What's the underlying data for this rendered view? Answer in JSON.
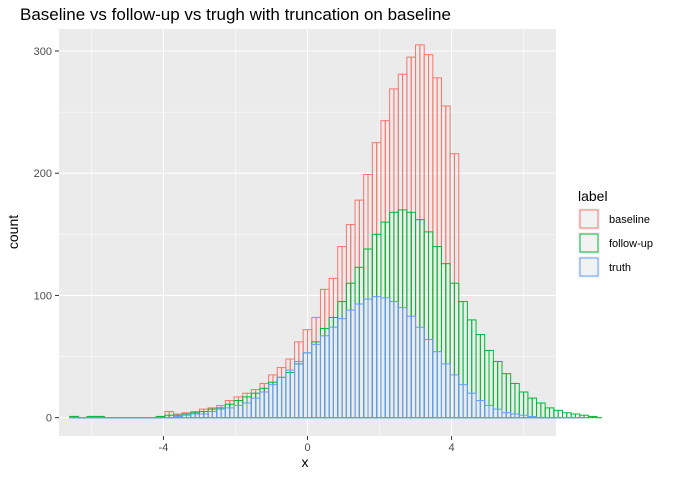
{
  "chart_data": {
    "type": "histogram",
    "title": "Baseline vs follow-up vs trugh with truncation on baseline",
    "xlabel": "x",
    "ylabel": "count",
    "xlim": [
      -6.9,
      6.9
    ],
    "ylim": [
      -15,
      318
    ],
    "x_ticks": [
      -4,
      0,
      4
    ],
    "y_ticks": [
      0,
      100,
      200,
      300
    ],
    "grid": true,
    "legend": {
      "title": "label",
      "placement": "right",
      "items": [
        {
          "label": "baseline",
          "color": "#F8766D"
        },
        {
          "label": "follow-up",
          "color": "#00BA38"
        },
        {
          "label": "truth",
          "color": "#619CFF"
        }
      ]
    },
    "bins": {
      "start": -6.6,
      "width": 0.12
    },
    "series": [
      {
        "name": "baseline",
        "color": "#F8766D",
        "values": [
          1,
          1,
          0,
          0,
          1,
          1,
          1,
          1,
          0,
          0,
          0,
          0,
          0,
          0,
          0,
          0,
          0,
          0,
          0,
          0,
          1,
          1,
          5,
          5,
          3,
          3,
          4,
          4,
          5,
          5,
          7,
          7,
          8,
          8,
          10,
          10,
          14,
          14,
          17,
          17,
          20,
          20,
          23,
          23,
          28,
          28,
          35,
          35,
          41,
          41,
          48,
          48,
          62,
          62,
          72,
          72,
          82,
          82,
          105,
          105,
          114,
          114,
          140,
          140,
          158,
          158,
          178,
          178,
          199,
          199,
          225,
          225,
          243,
          243,
          269,
          269,
          281,
          281,
          295,
          295,
          305,
          305,
          297,
          297,
          278,
          278,
          255,
          255,
          216,
          216,
          0,
          0,
          0,
          0,
          0,
          0,
          0,
          0,
          0,
          0,
          0,
          0,
          0,
          0,
          0,
          0,
          0,
          0,
          0,
          0,
          0,
          0,
          0,
          0,
          0,
          0,
          0,
          0,
          0
        ]
      },
      {
        "name": "follow-up",
        "color": "#00BA38",
        "values": [
          1,
          1,
          0,
          0,
          1,
          1,
          1,
          1,
          0,
          0,
          0,
          0,
          0,
          0,
          0,
          0,
          0,
          0,
          0,
          0,
          1,
          1,
          2,
          2,
          2,
          2,
          3,
          3,
          4,
          4,
          5,
          5,
          7,
          7,
          8,
          8,
          11,
          11,
          14,
          14,
          17,
          17,
          20,
          20,
          24,
          24,
          29,
          29,
          33,
          33,
          37,
          37,
          44,
          44,
          53,
          53,
          62,
          62,
          73,
          73,
          82,
          82,
          95,
          95,
          110,
          110,
          123,
          123,
          138,
          138,
          150,
          150,
          160,
          160,
          168,
          168,
          170,
          170,
          168,
          168,
          162,
          162,
          152,
          152,
          140,
          140,
          126,
          126,
          110,
          110,
          95,
          95,
          80,
          80,
          68,
          68,
          55,
          55,
          46,
          46,
          36,
          36,
          28,
          28,
          21,
          21,
          16,
          16,
          12,
          12,
          8,
          8,
          6,
          6,
          4,
          4,
          3,
          3,
          2,
          2,
          1,
          1,
          0
        ]
      },
      {
        "name": "truth",
        "color": "#619CFF",
        "values": [
          0,
          0,
          0,
          0,
          0,
          0,
          0,
          0,
          0,
          0,
          0,
          0,
          0,
          0,
          0,
          0,
          0,
          0,
          0,
          0,
          0,
          0,
          0,
          0,
          1,
          1,
          2,
          2,
          3,
          3,
          3,
          3,
          5,
          5,
          7,
          7,
          8,
          8,
          10,
          10,
          12,
          12,
          16,
          16,
          21,
          21,
          27,
          27,
          33,
          33,
          39,
          39,
          46,
          46,
          53,
          53,
          60,
          60,
          67,
          67,
          74,
          74,
          81,
          81,
          88,
          88,
          93,
          93,
          97,
          97,
          99,
          99,
          98,
          98,
          95,
          95,
          90,
          90,
          83,
          83,
          74,
          74,
          64,
          64,
          54,
          54,
          44,
          44,
          35,
          35,
          27,
          27,
          20,
          20,
          14,
          14,
          10,
          10,
          7,
          7,
          4,
          4,
          3,
          3,
          2,
          2,
          1,
          1,
          0,
          0,
          0,
          0,
          0,
          0,
          0,
          0,
          0,
          0,
          0
        ]
      }
    ]
  }
}
